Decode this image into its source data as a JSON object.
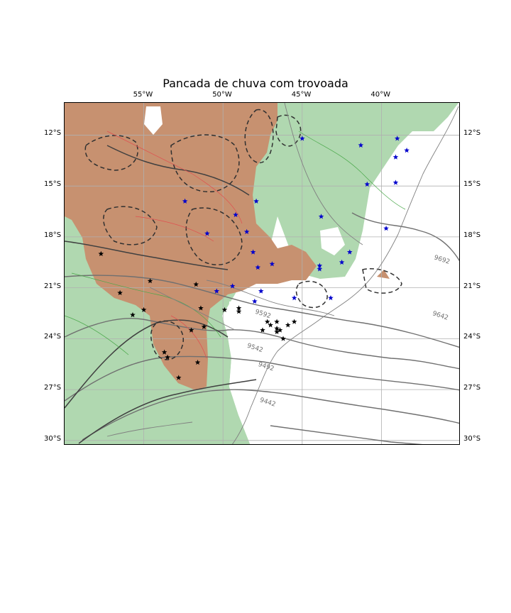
{
  "title": "Pancada de chuva com trovoada",
  "map": {
    "lon_range": [
      -60,
      -35
    ],
    "lat_range": [
      -30.3,
      -10.1
    ],
    "lon_ticks": [
      {
        "value": -55,
        "label": "55°W"
      },
      {
        "value": -50,
        "label": "50°W"
      },
      {
        "value": -45,
        "label": "45°W"
      },
      {
        "value": -40,
        "label": "40°W"
      }
    ],
    "lat_ticks": [
      {
        "value": -12,
        "label": "12°S"
      },
      {
        "value": -15,
        "label": "15°S"
      },
      {
        "value": -18,
        "label": "18°S"
      },
      {
        "value": -21,
        "label": "21°S"
      },
      {
        "value": -24,
        "label": "24°S"
      },
      {
        "value": -27,
        "label": "27°S"
      },
      {
        "value": -30,
        "label": "30°S"
      }
    ],
    "grid": true,
    "colors": {
      "green_area": "#b0d8b0",
      "brown_area": "#c79170",
      "star_blue": "#0000cc",
      "star_black": "#000000",
      "contour": "#707070"
    },
    "contour_labels": [
      {
        "text": "9692",
        "lon": -36.7,
        "lat": -19.3
      },
      {
        "text": "9642",
        "lon": -36.8,
        "lat": -22.6
      },
      {
        "text": "9592",
        "lon": -48.0,
        "lat": -22.5
      },
      {
        "text": "9542",
        "lon": -48.5,
        "lat": -24.5
      },
      {
        "text": "9492",
        "lon": -47.8,
        "lat": -25.6
      },
      {
        "text": "9442",
        "lon": -47.7,
        "lat": -27.7
      }
    ],
    "stars_blue": [
      [
        -45.0,
        -12.2
      ],
      [
        -41.3,
        -12.6
      ],
      [
        -39.0,
        -12.2
      ],
      [
        -38.4,
        -12.9
      ],
      [
        -39.1,
        -13.3
      ],
      [
        -40.9,
        -14.9
      ],
      [
        -39.1,
        -14.8
      ],
      [
        -52.4,
        -15.9
      ],
      [
        -47.9,
        -15.9
      ],
      [
        -49.2,
        -16.7
      ],
      [
        -43.8,
        -16.8
      ],
      [
        -51.0,
        -17.8
      ],
      [
        -48.5,
        -17.7
      ],
      [
        -39.7,
        -17.5
      ],
      [
        -48.1,
        -18.9
      ],
      [
        -46.9,
        -19.6
      ],
      [
        -43.9,
        -19.7
      ],
      [
        -43.9,
        -19.9
      ],
      [
        -42.5,
        -19.5
      ],
      [
        -42.0,
        -18.9
      ],
      [
        -47.8,
        -19.8
      ],
      [
        -49.4,
        -20.9
      ],
      [
        -50.4,
        -21.2
      ],
      [
        -47.6,
        -21.2
      ],
      [
        -48.0,
        -21.8
      ],
      [
        -45.5,
        -21.6
      ],
      [
        -43.2,
        -21.6
      ]
    ],
    "stars_black": [
      [
        -57.7,
        -19.0
      ],
      [
        -54.6,
        -20.6
      ],
      [
        -51.7,
        -20.8
      ],
      [
        -56.5,
        -21.3
      ],
      [
        -55.0,
        -22.3
      ],
      [
        -55.7,
        -22.6
      ],
      [
        -51.4,
        -22.2
      ],
      [
        -49.9,
        -22.3
      ],
      [
        -49.0,
        -22.2
      ],
      [
        -49.0,
        -22.4
      ],
      [
        -47.2,
        -23.0
      ],
      [
        -47.0,
        -23.2
      ],
      [
        -46.6,
        -23.0
      ],
      [
        -47.5,
        -23.5
      ],
      [
        -46.6,
        -23.4
      ],
      [
        -46.4,
        -23.5
      ],
      [
        -46.6,
        -23.6
      ],
      [
        -45.9,
        -23.2
      ],
      [
        -45.5,
        -23.0
      ],
      [
        -46.2,
        -24.0
      ],
      [
        -51.2,
        -23.3
      ],
      [
        -52.0,
        -23.5
      ],
      [
        -53.7,
        -24.8
      ],
      [
        -53.5,
        -25.1
      ],
      [
        -51.6,
        -25.4
      ],
      [
        -52.8,
        -26.3
      ]
    ]
  }
}
